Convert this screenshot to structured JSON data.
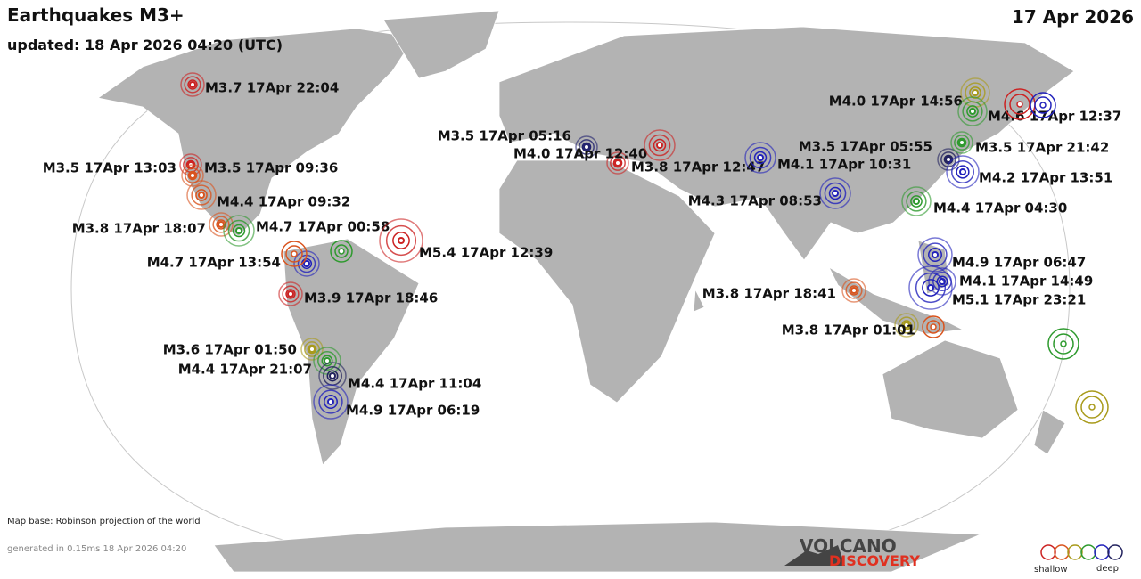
{
  "header": {
    "title": "Earthquakes M3+",
    "updated": "updated: 18 Apr 2026 04:20 (UTC)",
    "date": "17 Apr 2026"
  },
  "quakes": [
    {
      "label": "M3.7 17Apr 22:04",
      "color": "#cc2222"
    },
    {
      "label": "M3.5 17Apr 13:03",
      "color": "#cc2222"
    },
    {
      "label": "M3.5 17Apr 09:36",
      "color": "#d9541e"
    },
    {
      "label": "M4.4 17Apr 09:32",
      "color": "#d9541e"
    },
    {
      "label": "M3.8 17Apr 18:07",
      "color": "#d9541e"
    },
    {
      "label": "M4.7 17Apr 00:58",
      "color": "#2e9a2e"
    },
    {
      "label": "M5.4 17Apr 12:39",
      "color": "#cc2222"
    },
    {
      "label": "M4.7 17Apr 13:54",
      "color": "#2222bb"
    },
    {
      "label": "M3.9 17Apr 18:46",
      "color": "#cc2222"
    },
    {
      "label": "M3.6 17Apr 01:50",
      "color": "#a89a1a"
    },
    {
      "label": "M4.4 17Apr 21:07",
      "color": "#2e9a2e"
    },
    {
      "label": "M4.4 17Apr 11:04",
      "color": "#22225e"
    },
    {
      "label": "M4.9 17Apr 06:19",
      "color": "#2222bb"
    },
    {
      "label": "M3.5 17Apr 05:16",
      "color": "#22226e"
    },
    {
      "label": "M4.0 17Apr 12:40",
      "color": "#cc2222"
    },
    {
      "label": "M3.8 17Apr 12:47",
      "color": "#cc2222"
    },
    {
      "label": "M4.1 17Apr 10:31",
      "color": "#2222bb"
    },
    {
      "label": "M4.3 17Apr 08:53",
      "color": "#2222bb"
    },
    {
      "label": "M3.5 17Apr 05:55",
      "color": "#22225e"
    },
    {
      "label": "M3.5 17Apr 21:42",
      "color": "#2e9a2e"
    },
    {
      "label": "M4.2 17Apr 13:51",
      "color": "#2222bb"
    },
    {
      "label": "M4.0 17Apr 14:56",
      "color": "#a89a1a"
    },
    {
      "label": "M4.6 17Apr 12:37",
      "color": "#2e9a2e"
    },
    {
      "label": "M4.4 17Apr 04:30",
      "color": "#2e9a2e"
    },
    {
      "label": "M4.9 17Apr 06:47",
      "color": "#2222bb"
    },
    {
      "label": "M4.1 17Apr 14:49",
      "color": "#2222bb"
    },
    {
      "label": "M5.1 17Apr 23:21",
      "color": "#2222bb"
    },
    {
      "label": "M3.8 17Apr 18:41",
      "color": "#d9541e"
    },
    {
      "label": "M3.8 17Apr 01:01",
      "color": "#a89a1a"
    }
  ],
  "footer": {
    "map_base": "Map base: Robinson projection of the world",
    "generated": "generated in 0.15ms 18 Apr 2026 04:20",
    "brand_top": "VOLCANO",
    "brand_bottom": "DISCOVERY",
    "legend_shallow": "shallow",
    "legend_deep": "deep"
  }
}
